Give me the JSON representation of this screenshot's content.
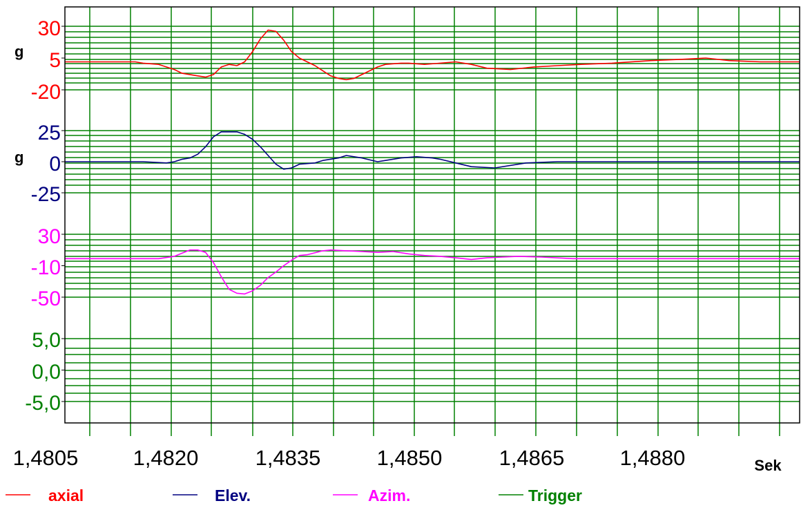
{
  "colors": {
    "axial": "#ff0000",
    "elev": "#000080",
    "azim": "#ff00ff",
    "trigger": "#008000",
    "grid": "#008000",
    "axis": "#000000",
    "background": "#ffffff"
  },
  "chart_data": {
    "type": "line",
    "grid": true,
    "legend_position": "bottom",
    "x_axis": {
      "ticks": [
        "1,4805",
        "1,4820",
        "1,4835",
        "1,4850",
        "1,4865",
        "1,4880"
      ],
      "unit_label": "Sek",
      "range": [
        1.4797,
        1.4891
      ]
    },
    "panels": [
      {
        "name": "axial",
        "unit": "g",
        "ticks": [
          "30",
          "5",
          "-20"
        ],
        "ylim": [
          -20,
          30
        ],
        "x": [
          1.4797,
          1.4801,
          1.4804,
          1.4806,
          1.4807,
          1.4809,
          1.4811,
          1.4812,
          1.4814,
          1.4815,
          1.4816,
          1.4817,
          1.4818,
          1.4819,
          1.482,
          1.4821,
          1.4822,
          1.4823,
          1.4824,
          1.4825,
          1.4826,
          1.4827,
          1.4828,
          1.4829,
          1.483,
          1.4831,
          1.4832,
          1.4833,
          1.4834,
          1.4835,
          1.4836,
          1.4837,
          1.4838,
          1.484,
          1.4841,
          1.4843,
          1.4845,
          1.4847,
          1.4849,
          1.4851,
          1.4854,
          1.4857,
          1.486,
          1.4863,
          1.4867,
          1.4872,
          1.4876,
          1.4879,
          1.4882,
          1.4886,
          1.4891
        ],
        "y": [
          2,
          2,
          2,
          2,
          1,
          0,
          -4,
          -7,
          -9,
          -10,
          -8,
          -2,
          0,
          -1,
          2,
          10,
          20,
          27,
          26,
          19,
          10,
          5,
          2,
          -1,
          -5,
          -9,
          -11,
          -12,
          -11,
          -8,
          -5,
          -2,
          0,
          1,
          1,
          0,
          1,
          2,
          0,
          -3,
          -4,
          -2,
          -1,
          0,
          1,
          3,
          4,
          5,
          3,
          2,
          2
        ]
      },
      {
        "name": "Elev.",
        "unit": "g",
        "ticks": [
          "25",
          "0",
          "-25"
        ],
        "ylim": [
          -25,
          25
        ],
        "x": [
          1.4797,
          1.4801,
          1.4804,
          1.4807,
          1.481,
          1.4811,
          1.4812,
          1.4813,
          1.4814,
          1.4815,
          1.4816,
          1.4817,
          1.4818,
          1.4819,
          1.482,
          1.4821,
          1.4822,
          1.4823,
          1.4824,
          1.4825,
          1.4826,
          1.4827,
          1.4829,
          1.483,
          1.4832,
          1.4833,
          1.4834,
          1.4835,
          1.4837,
          1.4838,
          1.484,
          1.4842,
          1.4844,
          1.4845,
          1.4847,
          1.4849,
          1.4852,
          1.4856,
          1.486,
          1.4864,
          1.4867,
          1.487,
          1.4876,
          1.488,
          1.4885,
          1.4891
        ],
        "y": [
          0,
          0,
          0,
          0,
          -1,
          0,
          2,
          3,
          6,
          12,
          20,
          24,
          24,
          24,
          22,
          18,
          12,
          5,
          -2,
          -6,
          -5,
          -2,
          -1,
          1,
          3,
          5,
          4,
          3,
          0,
          1,
          3,
          4,
          3,
          2,
          -1,
          -4,
          -5,
          -1,
          0,
          0,
          0,
          0,
          0,
          0,
          0,
          0
        ]
      },
      {
        "name": "Azim.",
        "unit": "",
        "ticks": [
          "30",
          "-10",
          "-50"
        ],
        "ylim": [
          -50,
          30
        ],
        "x": [
          1.4797,
          1.4801,
          1.4804,
          1.4807,
          1.4809,
          1.4811,
          1.4813,
          1.4814,
          1.4815,
          1.4816,
          1.4817,
          1.4818,
          1.4819,
          1.482,
          1.4821,
          1.4822,
          1.4823,
          1.4824,
          1.4825,
          1.4826,
          1.4827,
          1.4828,
          1.483,
          1.4831,
          1.4833,
          1.4835,
          1.4837,
          1.4839,
          1.4841,
          1.4843,
          1.4845,
          1.4847,
          1.4849,
          1.4851,
          1.4853,
          1.4855,
          1.4858,
          1.4862,
          1.4866,
          1.487,
          1.4875,
          1.488,
          1.4885,
          1.4891
        ],
        "y": [
          -1,
          -1,
          -1,
          -1,
          -1,
          2,
          10,
          10,
          7,
          -6,
          -24,
          -40,
          -45,
          -46,
          -42,
          -35,
          -25,
          -18,
          -10,
          -3,
          3,
          4,
          9,
          10,
          9,
          8,
          7,
          8,
          5,
          3,
          2,
          0,
          -2,
          0,
          1,
          2,
          1,
          -1,
          -1,
          -1,
          -1,
          -1,
          -1,
          -1
        ]
      },
      {
        "name": "Trigger",
        "unit": "",
        "ticks": [
          "5,0",
          "0,0",
          "-5,0"
        ],
        "ylim": [
          -5.0,
          5.0
        ],
        "x": [],
        "y": []
      }
    ],
    "legend": [
      {
        "label": "axial",
        "color_key": "axial"
      },
      {
        "label": "Elev.",
        "color_key": "elev"
      },
      {
        "label": "Azim.",
        "color_key": "azim"
      },
      {
        "label": "Trigger",
        "color_key": "trigger"
      }
    ]
  }
}
